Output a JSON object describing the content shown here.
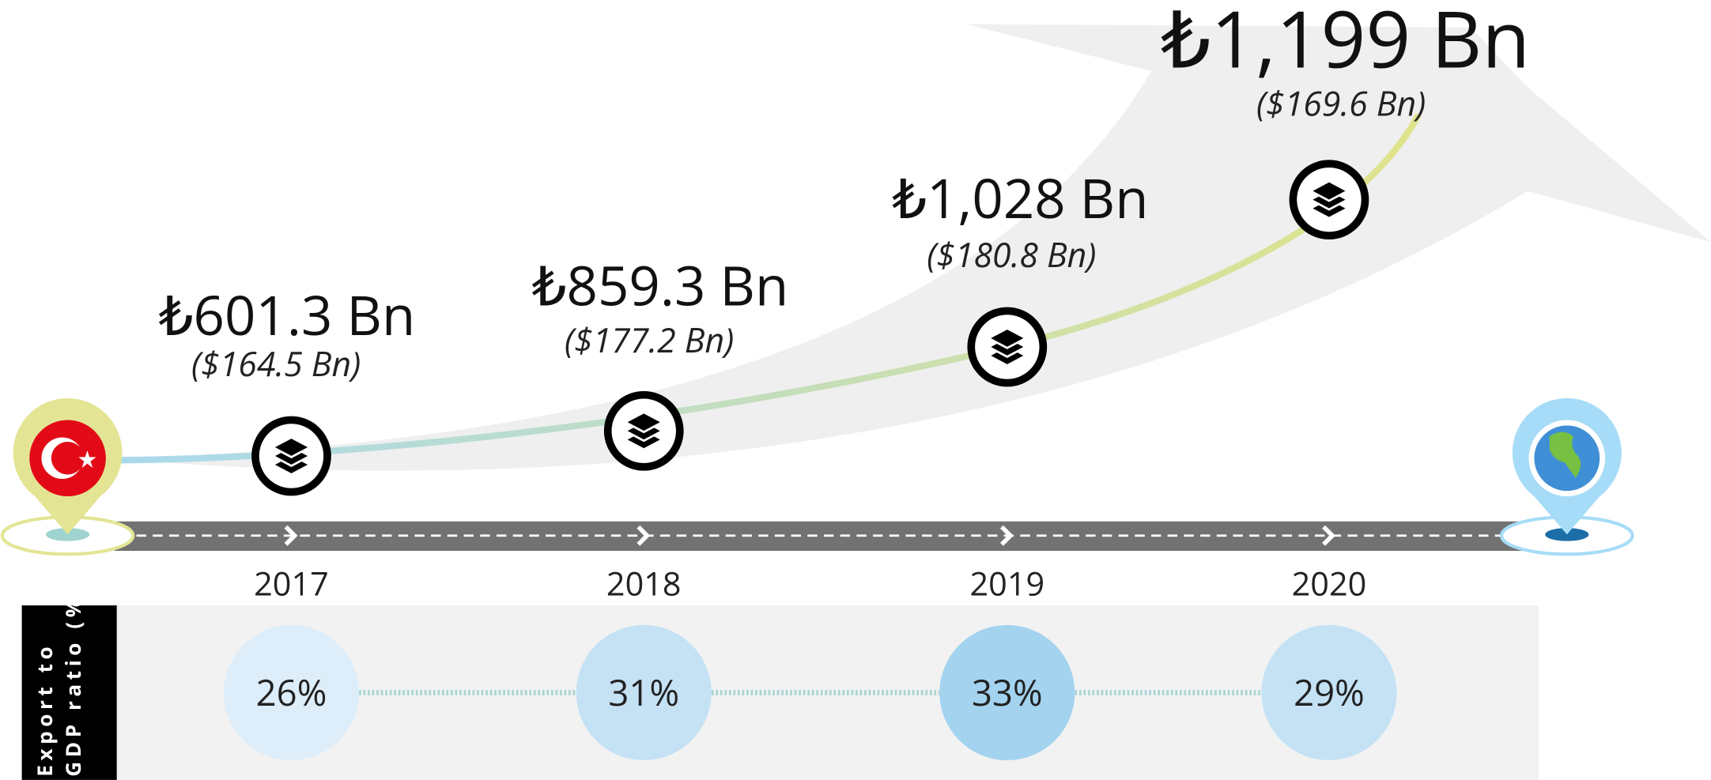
{
  "side_label": "Export to GDP ratio (%)",
  "items": [
    {
      "year": "2017",
      "try_value": "₺601.3 Bn",
      "usd_value": "($164.5 Bn)",
      "ratio": "26%"
    },
    {
      "year": "2018",
      "try_value": "₺859.3 Bn",
      "usd_value": "($177.2 Bn)",
      "ratio": "31%"
    },
    {
      "year": "2019",
      "try_value": "₺1,028 Bn",
      "usd_value": "($180.8 Bn)",
      "ratio": "33%"
    },
    {
      "year": "2020",
      "try_value": "₺1,199 Bn",
      "usd_value": "($169.6 Bn)",
      "ratio": "29%"
    }
  ]
}
